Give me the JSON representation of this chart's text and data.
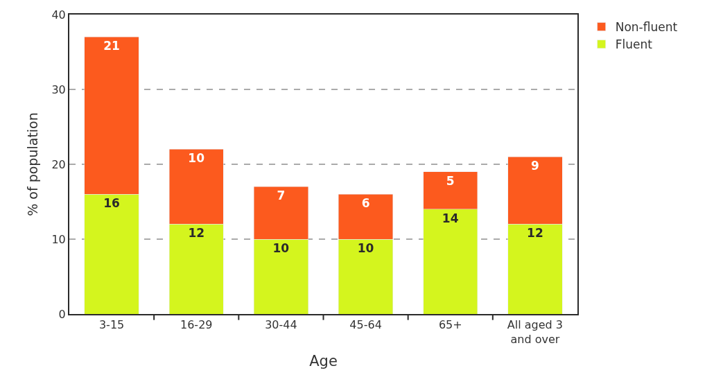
{
  "chart_data": {
    "type": "bar",
    "stacked": true,
    "xlabel": "Age",
    "ylabel": "% of population",
    "categories": [
      "3-15",
      "16-29",
      "30-44",
      "45-64",
      "65+",
      "All aged 3 and over"
    ],
    "series": [
      {
        "name": "Fluent",
        "color": "#d4f51e",
        "values": [
          16,
          12,
          10,
          10,
          14,
          12
        ]
      },
      {
        "name": "Non-fluent",
        "color": "#fc5a1e",
        "values": [
          21,
          10,
          7,
          6,
          5,
          9
        ]
      }
    ],
    "data_labels": true,
    "ylim": [
      0,
      40
    ],
    "yticks": [
      0,
      10,
      20,
      30,
      40
    ],
    "grid": "y",
    "legend": "top right"
  }
}
